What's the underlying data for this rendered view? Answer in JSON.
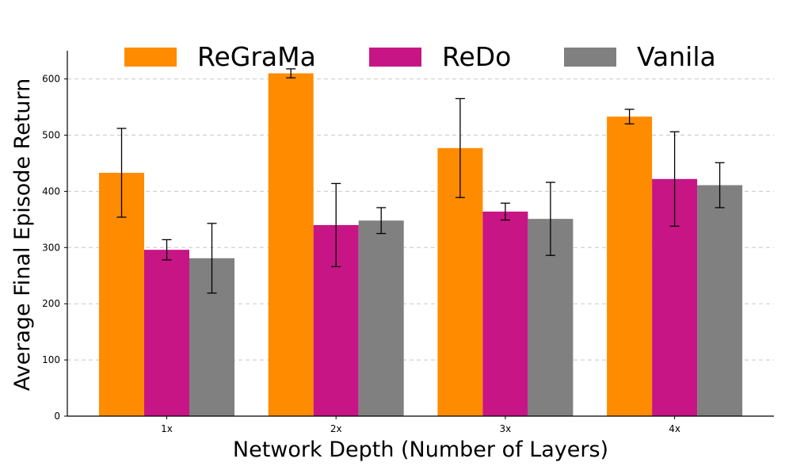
{
  "chart_data": {
    "type": "bar",
    "title": "",
    "xlabel": "Network Depth (Number of Layers)",
    "ylabel": "Average Final Episode Return",
    "categories": [
      "1x",
      "2x",
      "3x",
      "4x"
    ],
    "ylim": [
      0,
      650
    ],
    "yticks": [
      0,
      100,
      200,
      300,
      400,
      500,
      600
    ],
    "grid": "horizontal-dashed",
    "legend_position": "top",
    "series": [
      {
        "name": "ReGraMa",
        "color": "#ff8c00",
        "values": [
          433,
          610,
          477,
          533
        ],
        "errors": [
          79,
          8,
          88,
          13
        ]
      },
      {
        "name": "ReDo",
        "color": "#c71585",
        "values": [
          296,
          340,
          364,
          422
        ],
        "errors": [
          18,
          74,
          15,
          84
        ]
      },
      {
        "name": "Vanila",
        "color": "#808080",
        "values": [
          281,
          348,
          351,
          411
        ],
        "errors": [
          62,
          23,
          65,
          40
        ]
      }
    ]
  }
}
